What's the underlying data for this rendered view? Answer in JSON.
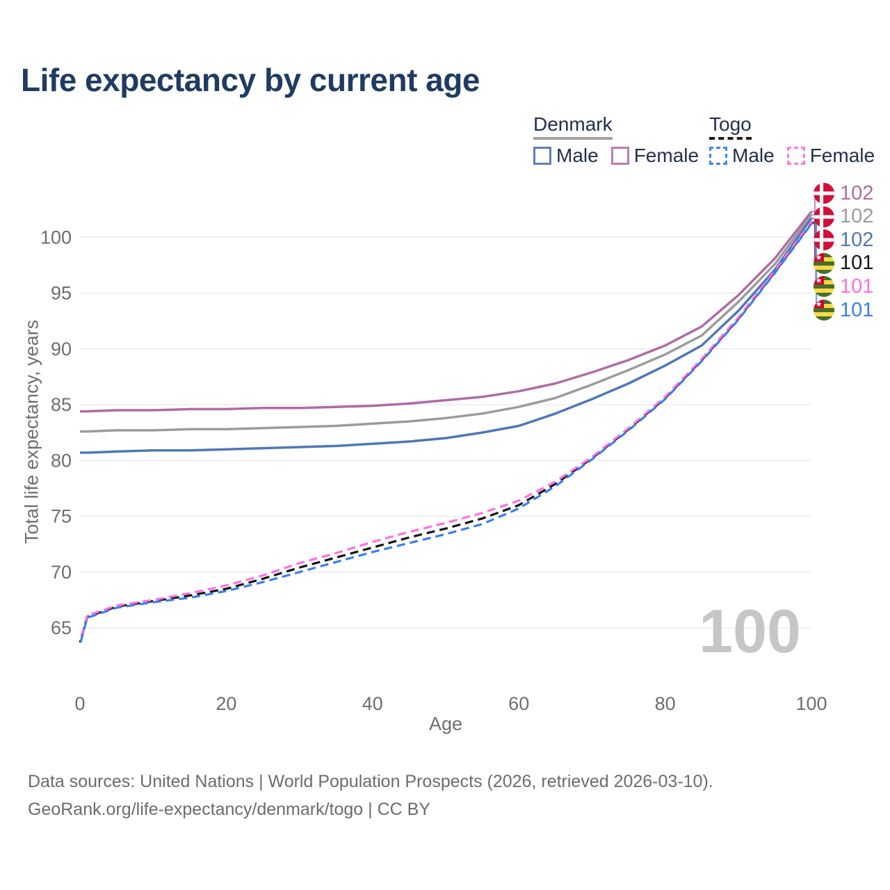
{
  "title": "Life expectancy by current age",
  "legend": {
    "denmark": {
      "label": "Denmark",
      "male": "Male",
      "female": "Female"
    },
    "togo": {
      "label": "Togo",
      "male": "Male",
      "female": "Female"
    }
  },
  "axis": {
    "x_label": "Age",
    "y_label": "Total life expectancy, years"
  },
  "watermark": "100",
  "caption": {
    "line1": "Data sources: United Nations | World Population Prospects (2026, retrieved 2026-03-10).",
    "line2": "GeoRank.org/life-expectancy/denmark/togo | CC BY"
  },
  "colors": {
    "title_text": "#1e3c63",
    "axis_text": "#6e6e6e",
    "gridline": "#e9e9e9",
    "denmark_female": "#b06ba6",
    "denmark_all": "#9b9b9b",
    "denmark_male": "#4f78b8",
    "togo_all": "#141414",
    "togo_female": "#ff6fe3",
    "togo_male": "#3b7ef0"
  },
  "chart_data": {
    "type": "line",
    "title": "Life expectancy by current age",
    "xlabel": "Age",
    "ylabel": "Total life expectancy, years",
    "grid": "horizontal",
    "legend_position": "top-right",
    "xlim": [
      0,
      100
    ],
    "ylim": [
      62.5,
      103.5
    ],
    "x_ticks": [
      0,
      20,
      40,
      60,
      80,
      100
    ],
    "y_ticks": [
      65,
      70,
      75,
      80,
      85,
      90,
      95,
      100
    ],
    "x": [
      0,
      1,
      5,
      10,
      15,
      20,
      25,
      30,
      35,
      40,
      45,
      50,
      55,
      60,
      65,
      70,
      75,
      80,
      85,
      90,
      95,
      100
    ],
    "series": [
      {
        "id": "denmark-female",
        "name": "Denmark Female",
        "group": "Denmark",
        "sex": "Female",
        "style": "solid",
        "width": 3.5,
        "color": "#b06ba6",
        "end_label": "102",
        "values": [
          84.4,
          84.4,
          84.5,
          84.5,
          84.6,
          84.6,
          84.7,
          84.7,
          84.8,
          84.9,
          85.1,
          85.4,
          85.7,
          86.2,
          86.9,
          87.9,
          89.0,
          90.3,
          92.0,
          94.8,
          98.1,
          102.3
        ]
      },
      {
        "id": "denmark-all",
        "name": "Denmark All",
        "group": "Denmark",
        "sex": "All",
        "style": "solid",
        "width": 3.5,
        "color": "#9b9b9b",
        "end_label": "102",
        "values": [
          82.6,
          82.6,
          82.7,
          82.7,
          82.8,
          82.8,
          82.9,
          83.0,
          83.1,
          83.3,
          83.5,
          83.8,
          84.2,
          84.8,
          85.6,
          86.8,
          88.1,
          89.5,
          91.2,
          94.2,
          97.6,
          102.0
        ]
      },
      {
        "id": "denmark-male",
        "name": "Denmark Male",
        "group": "Denmark",
        "sex": "Male",
        "style": "solid",
        "width": 3.5,
        "color": "#4f78b8",
        "end_label": "102",
        "values": [
          80.7,
          80.7,
          80.8,
          80.9,
          80.9,
          81.0,
          81.1,
          81.2,
          81.3,
          81.5,
          81.7,
          82.0,
          82.5,
          83.1,
          84.2,
          85.5,
          86.9,
          88.5,
          90.3,
          93.4,
          97.1,
          101.7
        ]
      },
      {
        "id": "togo-all",
        "name": "Togo All",
        "group": "Togo",
        "sex": "All",
        "style": "dashed",
        "width": 3.2,
        "color": "#141414",
        "end_label": "101",
        "values": [
          63.7,
          66.0,
          66.9,
          67.4,
          67.9,
          68.5,
          69.4,
          70.4,
          71.3,
          72.2,
          73.1,
          73.9,
          74.8,
          76.0,
          77.9,
          80.2,
          82.8,
          85.6,
          89.0,
          92.7,
          96.9,
          101.3
        ]
      },
      {
        "id": "togo-female",
        "name": "Togo Female",
        "group": "Togo",
        "sex": "Female",
        "style": "dashed",
        "width": 3.2,
        "color": "#ff6fe3",
        "end_label": "101",
        "values": [
          63.8,
          66.1,
          67.0,
          67.5,
          68.1,
          68.8,
          69.7,
          70.8,
          71.7,
          72.7,
          73.6,
          74.4,
          75.3,
          76.4,
          78.1,
          80.3,
          82.9,
          85.7,
          89.1,
          92.8,
          97.0,
          101.4
        ]
      },
      {
        "id": "togo-male",
        "name": "Togo Male",
        "group": "Togo",
        "sex": "Male",
        "style": "dashed",
        "width": 3.2,
        "color": "#3b7ef0",
        "end_label": "101",
        "values": [
          63.5,
          65.9,
          66.8,
          67.3,
          67.7,
          68.3,
          69.1,
          70.0,
          70.9,
          71.8,
          72.6,
          73.4,
          74.3,
          75.7,
          77.7,
          80.1,
          82.7,
          85.5,
          88.9,
          92.6,
          96.8,
          101.2
        ]
      }
    ],
    "end_labels": [
      {
        "value": "102",
        "flag": "denmark",
        "color": "#b06ba6"
      },
      {
        "value": "102",
        "flag": "denmark",
        "color": "#9b9b9b"
      },
      {
        "value": "102",
        "flag": "denmark",
        "color": "#4f78b8"
      },
      {
        "value": "101",
        "flag": "togo",
        "color": "#141414"
      },
      {
        "value": "101",
        "flag": "togo",
        "color": "#ff6fe3"
      },
      {
        "value": "101",
        "flag": "togo",
        "color": "#3b7ef0"
      }
    ],
    "watermark": "100"
  }
}
